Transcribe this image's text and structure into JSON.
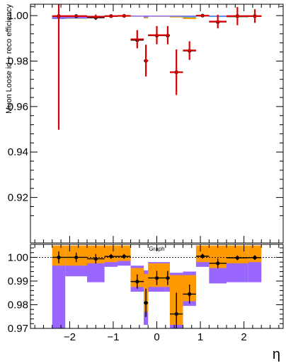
{
  "chart_data": [
    {
      "type": "scatter",
      "ylabel": "Muon Loose id + reco efficiency",
      "ylim": [
        0.9,
        1.005
      ],
      "xlim": [
        -2.9,
        2.9
      ],
      "y_tick_labels": [
        "0.92",
        "0.94",
        "0.96",
        "0.98",
        "1.00"
      ],
      "y_ticks": [
        0.92,
        0.94,
        0.96,
        0.98,
        1.0
      ],
      "bin_edges": [
        -2.4,
        -2.1,
        -1.6,
        -1.2,
        -0.9,
        -0.6,
        -0.3,
        -0.2,
        0.2,
        0.3,
        0.6,
        0.9,
        1.2,
        1.6,
        2.1,
        2.4
      ],
      "series": [
        {
          "y": [
            0.9998,
            0.9998,
            0.9991,
            0.9998,
            0.9999,
            0.9892,
            0.9801,
            0.9912,
            0.9912,
            0.9751,
            0.9845,
            1.0,
            0.9972,
            0.9998,
            0.9998,
            0.9998
          ],
          "yerr": [
            0.0003,
            0.0003,
            0.001,
            0.0005,
            0.0005,
            0.003,
            0.006,
            0.003,
            0.003,
            0.009,
            0.004,
            0.0005,
            0.002,
            0.0003,
            0.0003,
            0.0003
          ],
          "color": "#000000",
          "marker": "circle"
        },
        {
          "y": [
            0.9998,
            0.9998,
            0.9995,
            0.9998,
            0.9999,
            0.9896,
            0.9802,
            0.9914,
            0.9914,
            0.9751,
            0.9847,
            1.0,
            0.9974,
            0.9998,
            0.9998,
            0.9998
          ],
          "yerr": [
            0.05,
            0.0005,
            0.001,
            0.0008,
            0.0008,
            0.004,
            0.007,
            0.004,
            0.004,
            0.01,
            0.004,
            0.0006,
            0.003,
            0.004,
            0.003,
            0.001
          ],
          "color": "#d90000",
          "marker": "errorbar"
        }
      ],
      "bands": [
        {
          "color": "#ff9900",
          "lo": [
            0.9985,
            0.9986,
            0.999,
            0.9994,
            0.9995,
            0.9995,
            0.9988,
            0.9995,
            0.9995,
            0.9992,
            0.9985,
            0.9996,
            0.9994,
            0.9992,
            0.9994,
            0.9993
          ],
          "hi": [
            0.9999,
            0.9999,
            0.9999,
            1.0,
            1.0,
            1.0,
            1.0,
            1.0,
            1.0,
            1.0,
            1.0,
            1.0,
            1.0,
            1.0,
            1.0,
            1.0
          ]
        },
        {
          "color": "#00cccc",
          "lo": [
            0.9985,
            0.9987,
            0.999,
            0.9994,
            0.9996,
            0.9996,
            0.9992,
            0.9996,
            0.9996,
            0.9995,
            0.9992,
            0.9996,
            0.9994,
            0.9993,
            0.9995,
            0.9994
          ],
          "hi": [
            0.9999,
            0.9999,
            0.9999,
            1.0,
            1.0,
            1.0,
            1.0,
            1.0,
            1.0,
            1.0,
            1.0,
            1.0,
            1.0,
            1.0,
            1.0,
            1.0
          ]
        },
        {
          "color": "#9966ff",
          "lo": [
            0.9986,
            0.9988,
            0.9991,
            0.9995,
            0.9996,
            0.9996,
            0.9993,
            0.9996,
            0.9996,
            0.9996,
            0.9995,
            0.9996,
            0.9996,
            0.9994,
            0.9995,
            0.9995
          ],
          "hi": [
            0.9999,
            0.9999,
            0.9999,
            1.0,
            1.0,
            1.0,
            1.0,
            1.0,
            1.0,
            1.0,
            1.0,
            1.0,
            1.0,
            1.0,
            1.0,
            1.0
          ]
        }
      ]
    },
    {
      "type": "scatter",
      "legend": [
        {
          "label": "Graph",
          "placement": "top-center"
        }
      ],
      "xlabel": "η",
      "xlim": [
        -2.9,
        2.9
      ],
      "ylim": [
        0.97,
        1.0055
      ],
      "x_tick_labels": [
        "−2",
        "−1",
        "0",
        "1",
        "2"
      ],
      "x_ticks": [
        -2,
        -1,
        0,
        1,
        2
      ],
      "y_tick_labels": [
        "0.97",
        "0.98",
        "0.99",
        "1.00"
      ],
      "y_ticks": [
        0.97,
        0.98,
        0.99,
        1.0
      ],
      "reference_line": 1.0,
      "bin_edges": [
        -2.4,
        -2.1,
        -1.6,
        -1.2,
        -0.9,
        -0.6,
        -0.3,
        -0.2,
        0.2,
        0.3,
        0.6,
        0.9,
        1.2,
        1.6,
        2.1,
        2.4
      ],
      "series": [
        {
          "y": [
            1.0,
            1.0,
            0.9994,
            1.0004,
            1.0004,
            0.9898,
            0.9808,
            0.9913,
            0.9913,
            0.9761,
            0.9845,
            1.0005,
            0.9975,
            0.9998,
            0.9999,
            0.9998
          ],
          "yerr": [
            0.0025,
            0.002,
            0.002,
            0.001,
            0.001,
            0.003,
            0.006,
            0.003,
            0.003,
            0.009,
            0.004,
            0.001,
            0.002,
            0.001,
            0.001,
            0.0015
          ],
          "color": "#000000",
          "marker": "circle"
        }
      ],
      "bands": [
        {
          "color": "#9966ff",
          "lo": [
            0.97,
            0.992,
            0.9895,
            0.996,
            0.9965,
            0.9855,
            0.9715,
            0.9855,
            0.9855,
            0.97,
            0.9795,
            0.996,
            0.989,
            0.9895,
            0.9895,
            0.97
          ],
          "hi": [
            1.0,
            1.0,
            1.0,
            1.0,
            1.0,
            0.9965,
            0.9945,
            0.998,
            0.998,
            0.9935,
            0.994,
            1.0,
            0.9985,
            1.0,
            1.0,
            1.0
          ]
        },
        {
          "color": "#ff9900",
          "lo": [
            0.9965,
            0.9965,
            0.9975,
            0.998,
            0.9985,
            0.9875,
            0.977,
            0.9875,
            0.9875,
            0.9715,
            0.9815,
            0.998,
            0.9955,
            0.9975,
            0.998,
            0.9975
          ],
          "hi": [
            1.005,
            1.005,
            1.005,
            1.005,
            1.005,
            0.9955,
            0.993,
            0.9975,
            0.9975,
            0.9925,
            0.9925,
            1.005,
            1.005,
            1.005,
            1.005,
            1.005
          ]
        }
      ]
    }
  ]
}
